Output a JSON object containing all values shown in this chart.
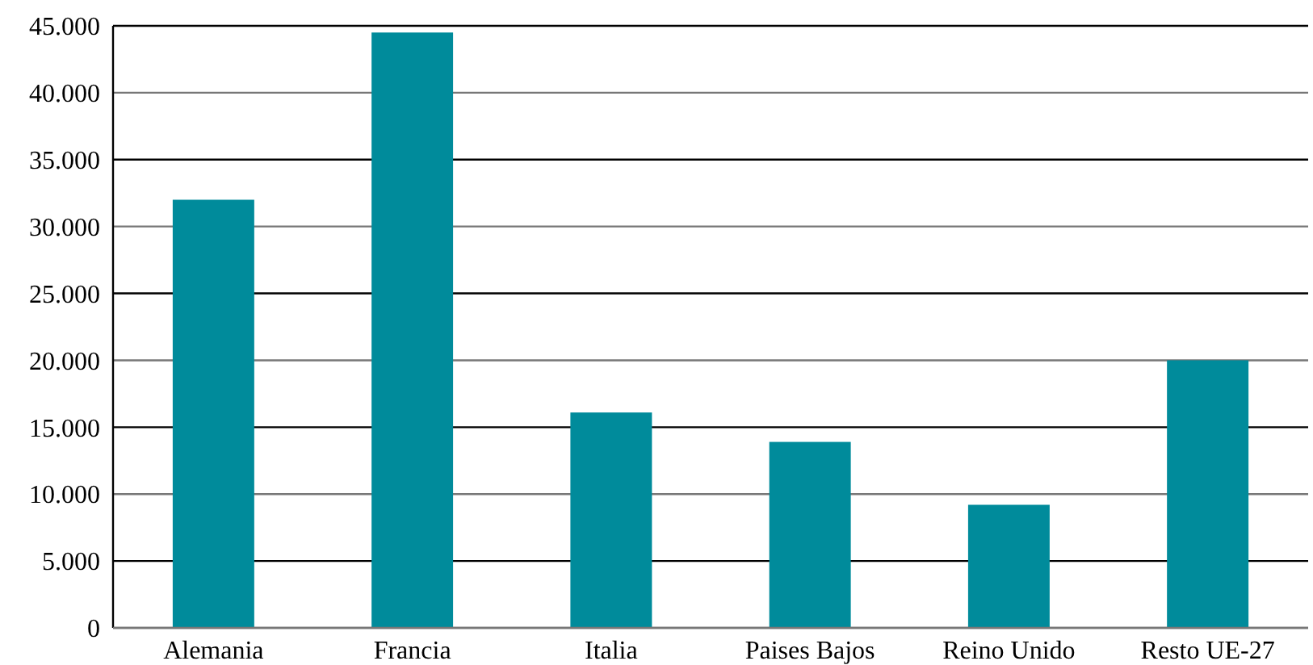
{
  "chart_data": {
    "type": "bar",
    "categories": [
      "Alemania",
      "Francia",
      "Italia",
      "Paises Bajos",
      "Reino Unido",
      "Resto UE-27"
    ],
    "values": [
      32000,
      44500,
      16100,
      13900,
      9200,
      20000
    ],
    "color": "#008b9b",
    "ylim": [
      0,
      45000
    ],
    "yticks": [
      {
        "value": 0,
        "label": "0"
      },
      {
        "value": 5000,
        "label": "5.000"
      },
      {
        "value": 10000,
        "label": "10.000"
      },
      {
        "value": 15000,
        "label": "15.000"
      },
      {
        "value": 20000,
        "label": "20.000"
      },
      {
        "value": 25000,
        "label": "25.000"
      },
      {
        "value": 30000,
        "label": "30.000"
      },
      {
        "value": 35000,
        "label": "35.000"
      },
      {
        "value": 40000,
        "label": "40.000"
      },
      {
        "value": 45000,
        "label": "45.000"
      }
    ],
    "grid": "y"
  }
}
